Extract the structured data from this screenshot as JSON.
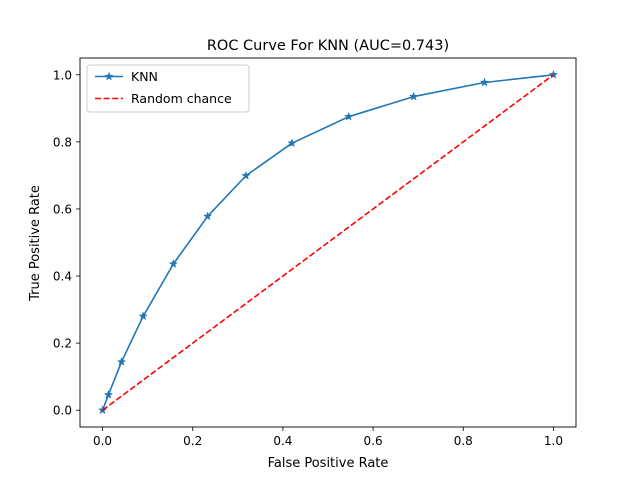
{
  "chart_data": {
    "type": "line",
    "title": "ROC Curve For KNN (AUC=0.743)",
    "xlabel": "False Positive Rate",
    "ylabel": "True Positive Rate",
    "xlim": [
      -0.05,
      1.05
    ],
    "ylim": [
      -0.05,
      1.05
    ],
    "xticks": [
      0.0,
      0.2,
      0.4,
      0.6,
      0.8,
      1.0
    ],
    "xtick_labels": [
      "0.0",
      "0.2",
      "0.4",
      "0.6",
      "0.8",
      "1.0"
    ],
    "yticks": [
      0.0,
      0.2,
      0.4,
      0.6,
      0.8,
      1.0
    ],
    "ytick_labels": [
      "0.0",
      "0.2",
      "0.4",
      "0.6",
      "0.8",
      "1.0"
    ],
    "grid": false,
    "legend": {
      "position": "upper-left",
      "entries": [
        "KNN",
        "Random chance"
      ]
    },
    "series": [
      {
        "name": "KNN",
        "color": "#1f77b4",
        "line_style": "solid",
        "marker": "star",
        "x": [
          0.0,
          0.013,
          0.042,
          0.09,
          0.157,
          0.233,
          0.318,
          0.42,
          0.546,
          0.69,
          0.847,
          1.0
        ],
        "y": [
          0.0,
          0.046,
          0.144,
          0.28,
          0.436,
          0.578,
          0.699,
          0.796,
          0.875,
          0.935,
          0.977,
          1.0
        ]
      },
      {
        "name": "Random chance",
        "color": "#ff0000",
        "line_style": "dashed",
        "marker": "none",
        "x": [
          0.0,
          1.0
        ],
        "y": [
          0.0,
          1.0
        ]
      }
    ]
  }
}
